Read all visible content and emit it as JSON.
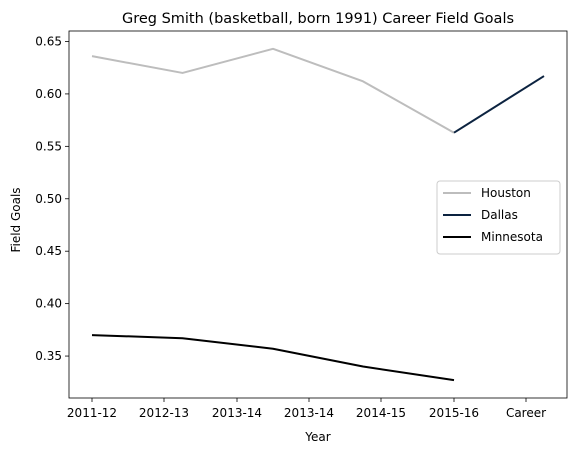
{
  "chart_data": {
    "type": "line",
    "title": "Greg Smith (basketball, born 1991) Career Field Goals",
    "xlabel": "Year",
    "ylabel": "Field Goals",
    "categories": [
      "2011-12",
      "2012-13",
      "2013-14",
      "2013-14",
      "2014-15",
      "2015-16",
      "Career"
    ],
    "ylim": [
      0.31,
      0.66
    ],
    "yticks": [
      "0.35",
      "0.40",
      "0.45",
      "0.50",
      "0.55",
      "0.60",
      "0.65"
    ],
    "grid": false,
    "legend_position": "right",
    "series": [
      {
        "name": "Houston",
        "color": "#bdbdbd",
        "points": [
          {
            "x": "2011-12",
            "y": 0.636
          },
          {
            "x": "2012-13",
            "y": 0.62
          },
          {
            "x": "2013-14",
            "y": 0.643
          },
          {
            "x": "2014-15",
            "y": 0.612
          },
          {
            "x": "2015-16",
            "y": 0.563
          }
        ]
      },
      {
        "name": "Dallas",
        "color": "#0c2340",
        "points": [
          {
            "x": "2015-16",
            "y": 0.563
          },
          {
            "x": "Career",
            "y": 0.617
          }
        ]
      },
      {
        "name": "Minnesota",
        "color": "#000000",
        "points": [
          {
            "x": "2011-12",
            "y": 0.37
          },
          {
            "x": "2012-13",
            "y": 0.367
          },
          {
            "x": "2013-14",
            "y": 0.357
          },
          {
            "x": "2014-15",
            "y": 0.34
          },
          {
            "x": "2015-16",
            "y": 0.327
          }
        ]
      }
    ]
  }
}
